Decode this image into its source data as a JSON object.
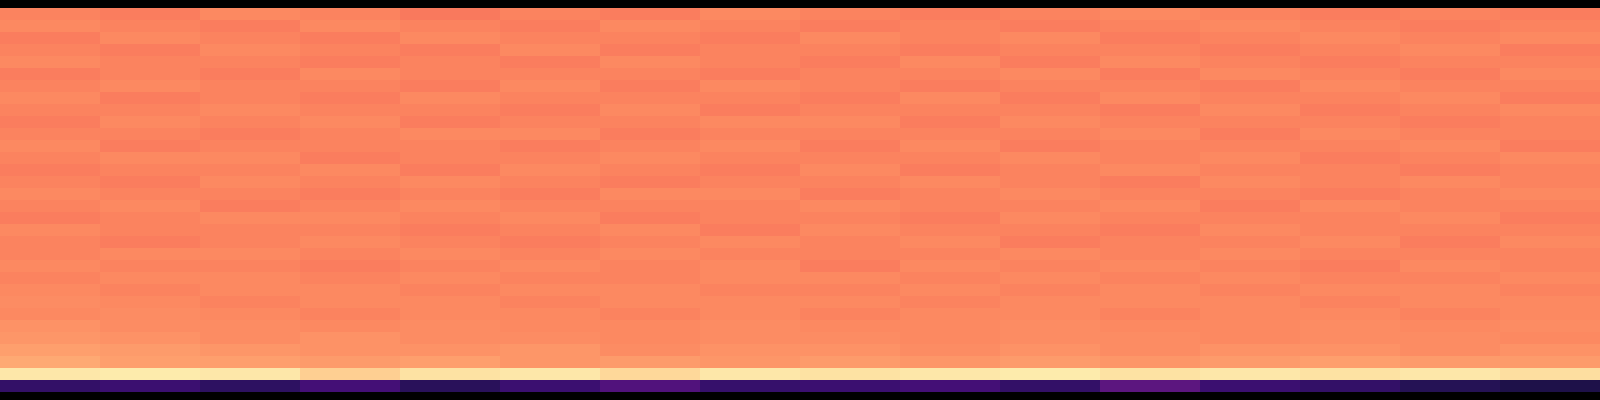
{
  "chart_data": {
    "type": "heatmap",
    "color": "magma",
    "tick_labels": false,
    "color_range": [
      0,
      1
    ],
    "cells": [
      [
        0.74,
        0.73,
        0.75,
        0.74,
        0.72,
        0.74,
        0.73,
        0.75,
        0.74,
        0.73,
        0.74,
        0.75,
        0.74,
        0.73,
        0.74,
        0.73
      ],
      [
        0.75,
        0.74,
        0.73,
        0.75,
        0.74,
        0.73,
        0.75,
        0.74,
        0.73,
        0.74,
        0.73,
        0.74,
        0.75,
        0.74,
        0.73,
        0.74
      ],
      [
        0.73,
        0.75,
        0.74,
        0.73,
        0.75,
        0.74,
        0.74,
        0.73,
        0.75,
        0.74,
        0.75,
        0.73,
        0.74,
        0.75,
        0.74,
        0.75
      ],
      [
        0.74,
        0.73,
        0.75,
        0.74,
        0.73,
        0.75,
        0.73,
        0.74,
        0.74,
        0.73,
        0.74,
        0.74,
        0.73,
        0.74,
        0.75,
        0.73
      ],
      [
        0.75,
        0.74,
        0.74,
        0.73,
        0.74,
        0.73,
        0.75,
        0.74,
        0.73,
        0.75,
        0.73,
        0.75,
        0.74,
        0.73,
        0.74,
        0.74
      ],
      [
        0.73,
        0.74,
        0.73,
        0.75,
        0.74,
        0.74,
        0.74,
        0.73,
        0.74,
        0.74,
        0.75,
        0.73,
        0.75,
        0.74,
        0.73,
        0.75
      ],
      [
        0.74,
        0.75,
        0.74,
        0.74,
        0.73,
        0.75,
        0.73,
        0.75,
        0.74,
        0.73,
        0.74,
        0.74,
        0.73,
        0.75,
        0.74,
        0.74
      ],
      [
        0.75,
        0.73,
        0.74,
        0.73,
        0.75,
        0.74,
        0.74,
        0.74,
        0.73,
        0.75,
        0.73,
        0.75,
        0.74,
        0.74,
        0.75,
        0.73
      ],
      [
        0.74,
        0.74,
        0.75,
        0.74,
        0.74,
        0.73,
        0.75,
        0.73,
        0.74,
        0.74,
        0.74,
        0.73,
        0.75,
        0.73,
        0.74,
        0.75
      ],
      [
        0.73,
        0.75,
        0.74,
        0.75,
        0.73,
        0.74,
        0.74,
        0.75,
        0.75,
        0.73,
        0.75,
        0.74,
        0.74,
        0.74,
        0.73,
        0.74
      ],
      [
        0.74,
        0.74,
        0.73,
        0.74,
        0.75,
        0.75,
        0.73,
        0.74,
        0.74,
        0.74,
        0.74,
        0.75,
        0.73,
        0.75,
        0.74,
        0.74
      ],
      [
        0.75,
        0.73,
        0.74,
        0.74,
        0.74,
        0.73,
        0.74,
        0.75,
        0.73,
        0.75,
        0.73,
        0.74,
        0.74,
        0.74,
        0.75,
        0.73
      ],
      [
        0.74,
        0.75,
        0.75,
        0.73,
        0.74,
        0.74,
        0.75,
        0.74,
        0.74,
        0.74,
        0.75,
        0.74,
        0.75,
        0.73,
        0.74,
        0.75
      ],
      [
        0.73,
        0.74,
        0.74,
        0.75,
        0.73,
        0.75,
        0.74,
        0.73,
        0.75,
        0.73,
        0.74,
        0.75,
        0.74,
        0.74,
        0.73,
        0.74
      ],
      [
        0.74,
        0.73,
        0.75,
        0.74,
        0.75,
        0.74,
        0.73,
        0.74,
        0.74,
        0.75,
        0.74,
        0.73,
        0.75,
        0.74,
        0.75,
        0.74
      ],
      [
        0.75,
        0.74,
        0.74,
        0.73,
        0.74,
        0.73,
        0.75,
        0.75,
        0.73,
        0.74,
        0.75,
        0.74,
        0.74,
        0.73,
        0.74,
        0.75
      ],
      [
        0.74,
        0.75,
        0.73,
        0.74,
        0.75,
        0.74,
        0.74,
        0.74,
        0.75,
        0.74,
        0.74,
        0.75,
        0.73,
        0.75,
        0.74,
        0.74
      ],
      [
        0.73,
        0.74,
        0.75,
        0.75,
        0.74,
        0.75,
        0.73,
        0.74,
        0.74,
        0.73,
        0.75,
        0.74,
        0.74,
        0.74,
        0.75,
        0.73
      ],
      [
        0.75,
        0.74,
        0.74,
        0.74,
        0.73,
        0.74,
        0.75,
        0.73,
        0.75,
        0.74,
        0.74,
        0.73,
        0.75,
        0.74,
        0.74,
        0.74
      ],
      [
        0.74,
        0.73,
        0.74,
        0.75,
        0.74,
        0.73,
        0.74,
        0.75,
        0.74,
        0.75,
        0.73,
        0.74,
        0.74,
        0.75,
        0.73,
        0.75
      ],
      [
        0.74,
        0.75,
        0.75,
        0.74,
        0.75,
        0.74,
        0.75,
        0.74,
        0.74,
        0.74,
        0.75,
        0.74,
        0.75,
        0.74,
        0.74,
        0.74
      ],
      [
        0.75,
        0.74,
        0.74,
        0.73,
        0.74,
        0.75,
        0.74,
        0.75,
        0.73,
        0.75,
        0.74,
        0.75,
        0.74,
        0.73,
        0.75,
        0.74
      ],
      [
        0.74,
        0.75,
        0.75,
        0.74,
        0.75,
        0.74,
        0.74,
        0.75,
        0.75,
        0.74,
        0.75,
        0.74,
        0.75,
        0.74,
        0.74,
        0.75
      ],
      [
        0.75,
        0.74,
        0.75,
        0.75,
        0.74,
        0.75,
        0.75,
        0.74,
        0.74,
        0.75,
        0.74,
        0.75,
        0.74,
        0.75,
        0.75,
        0.74
      ],
      [
        0.76,
        0.75,
        0.74,
        0.75,
        0.75,
        0.74,
        0.75,
        0.75,
        0.75,
        0.74,
        0.75,
        0.75,
        0.75,
        0.74,
        0.75,
        0.75
      ],
      [
        0.75,
        0.76,
        0.75,
        0.74,
        0.75,
        0.75,
        0.74,
        0.75,
        0.74,
        0.75,
        0.75,
        0.74,
        0.75,
        0.75,
        0.74,
        0.75
      ],
      [
        0.77,
        0.76,
        0.76,
        0.75,
        0.76,
        0.75,
        0.75,
        0.76,
        0.75,
        0.75,
        0.76,
        0.75,
        0.75,
        0.76,
        0.75,
        0.76
      ],
      [
        0.78,
        0.77,
        0.76,
        0.77,
        0.76,
        0.76,
        0.75,
        0.76,
        0.76,
        0.75,
        0.76,
        0.76,
        0.75,
        0.76,
        0.76,
        0.75
      ],
      [
        0.8,
        0.79,
        0.78,
        0.77,
        0.77,
        0.78,
        0.76,
        0.77,
        0.77,
        0.76,
        0.77,
        0.76,
        0.77,
        0.77,
        0.76,
        0.77
      ],
      [
        0.82,
        0.8,
        0.8,
        0.79,
        0.8,
        0.78,
        0.79,
        0.78,
        0.79,
        0.78,
        0.79,
        0.78,
        0.79,
        0.8,
        0.79,
        0.79
      ],
      [
        0.95,
        0.96,
        0.95,
        0.9,
        0.94,
        0.95,
        0.92,
        0.95,
        0.94,
        0.95,
        0.96,
        0.94,
        0.95,
        0.94,
        0.95,
        0.93
      ],
      [
        0.18,
        0.2,
        0.17,
        0.22,
        0.16,
        0.2,
        0.25,
        0.19,
        0.2,
        0.22,
        0.18,
        0.28,
        0.2,
        0.18,
        0.15,
        0.13
      ]
    ]
  }
}
